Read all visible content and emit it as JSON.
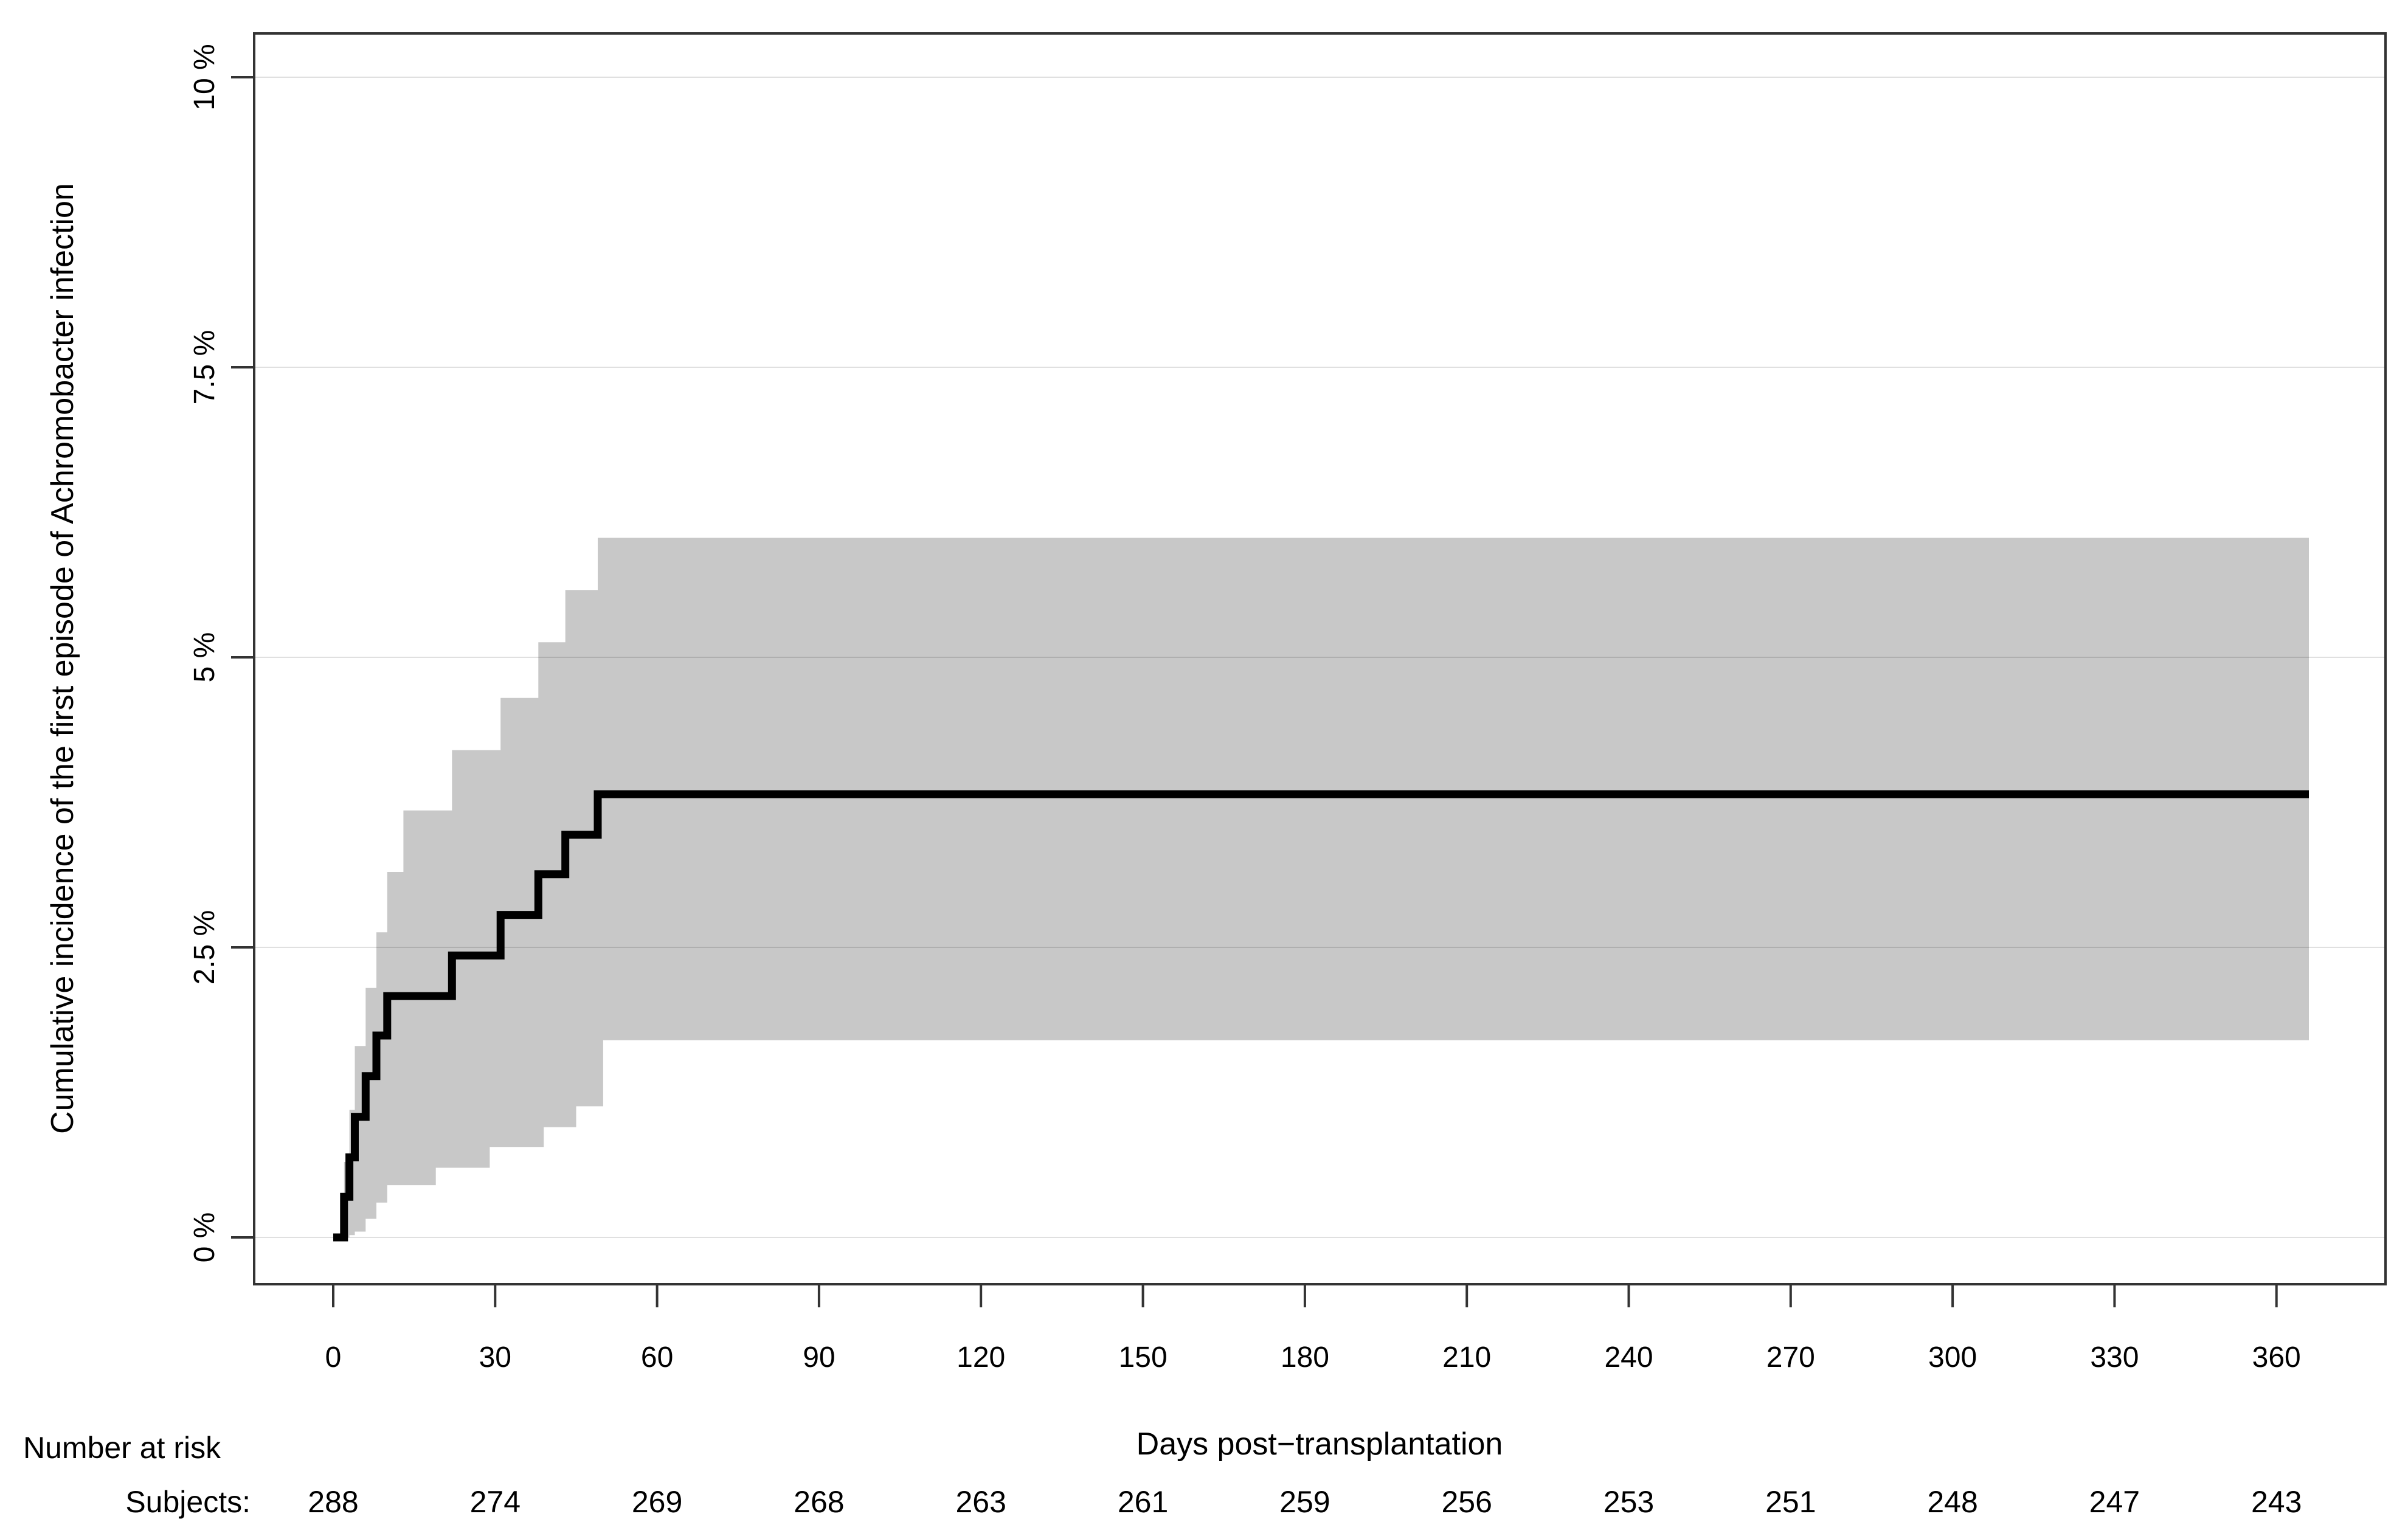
{
  "figure": {
    "background": "#ffffff",
    "axis_color": "#333333",
    "grid_color": "#d9d9d9",
    "band_color": "#c8c8c8",
    "curve_color": "#000000"
  },
  "chart_data": {
    "type": "line",
    "subtype": "step-cumulative-incidence",
    "title": "",
    "xlabel": "Days post−transplantation",
    "ylabel": "Cumulative incidence of the first episode of Achromobacter infection",
    "x_tick_values": [
      0,
      30,
      60,
      90,
      120,
      150,
      180,
      210,
      240,
      270,
      300,
      330,
      360
    ],
    "x_tick_labels": [
      "0",
      "30",
      "60",
      "90",
      "120",
      "150",
      "180",
      "210",
      "240",
      "270",
      "300",
      "330",
      "360"
    ],
    "y_tick_values": [
      0,
      2.5,
      5,
      7.5,
      10
    ],
    "y_tick_labels": [
      "0 %",
      "2.5 %",
      "5 %",
      "7.5 %",
      "10 %"
    ],
    "xlim": [
      -14.6,
      380
    ],
    "ylim": [
      -0.4,
      10.4
    ],
    "grid": true,
    "legend": "none",
    "series": [
      {
        "name": "cumulative_incidence",
        "type": "step",
        "color": "#000000",
        "points": [
          [
            0,
            0
          ],
          [
            2,
            0.35
          ],
          [
            3,
            0.69
          ],
          [
            4,
            1.04
          ],
          [
            6,
            1.39
          ],
          [
            8,
            1.74
          ],
          [
            10,
            2.08
          ],
          [
            22,
            2.43
          ],
          [
            31,
            2.78
          ],
          [
            38,
            3.13
          ],
          [
            43,
            3.47
          ],
          [
            49,
            3.82
          ],
          [
            366,
            3.82
          ]
        ]
      },
      {
        "name": "ci95_upper",
        "type": "step",
        "color": "#c8c8c8",
        "points": [
          [
            2,
            0
          ],
          [
            2,
            0.65
          ],
          [
            3,
            1.1
          ],
          [
            4,
            1.65
          ],
          [
            6,
            2.15
          ],
          [
            8,
            2.63
          ],
          [
            10,
            3.15
          ],
          [
            13,
            3.68
          ],
          [
            22,
            4.2
          ],
          [
            31,
            4.65
          ],
          [
            38,
            5.13
          ],
          [
            43,
            5.58
          ],
          [
            49,
            6.03
          ],
          [
            366,
            6.03
          ]
        ]
      },
      {
        "name": "ci95_lower",
        "type": "step",
        "color": "#c8c8c8",
        "points": [
          [
            2,
            0
          ],
          [
            3,
            0.02
          ],
          [
            4,
            0.05
          ],
          [
            6,
            0.16
          ],
          [
            8,
            0.3
          ],
          [
            10,
            0.45
          ],
          [
            19,
            0.6
          ],
          [
            29,
            0.78
          ],
          [
            39,
            0.95
          ],
          [
            45,
            1.13
          ],
          [
            50,
            1.7
          ],
          [
            366,
            1.7
          ]
        ]
      }
    ],
    "risk_table": {
      "header": "Number at risk",
      "row_label": "Subjects:",
      "times": [
        0,
        30,
        60,
        90,
        120,
        150,
        180,
        210,
        240,
        270,
        300,
        330,
        360
      ],
      "counts": [
        288,
        274,
        269,
        268,
        263,
        261,
        259,
        256,
        253,
        251,
        248,
        247,
        243
      ]
    }
  }
}
